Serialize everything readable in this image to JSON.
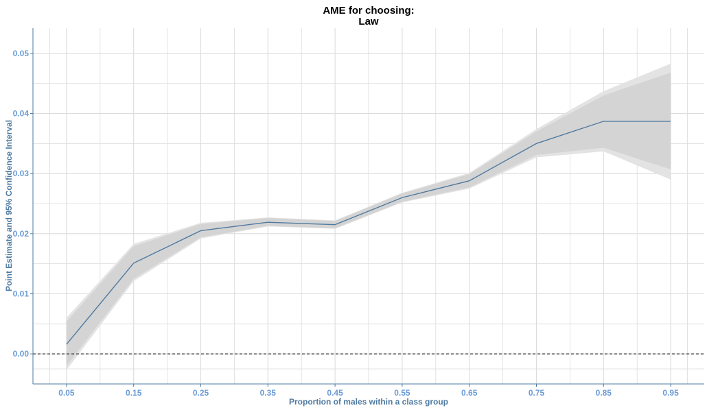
{
  "chart_data": {
    "type": "line",
    "title_lines": [
      "AME for choosing:",
      "Law"
    ],
    "xlabel": "Proportion of males within a class group",
    "ylabel": "Point Estimate and 95% Confidence Interval",
    "x": [
      0.05,
      0.15,
      0.25,
      0.35,
      0.45,
      0.55,
      0.65,
      0.75,
      0.85,
      0.95
    ],
    "x_tick_labels": [
      "0.05",
      "0.15",
      "0.25",
      "0.35",
      "0.45",
      "0.55",
      "0.65",
      "0.75",
      "0.85",
      "0.95"
    ],
    "y_tick_labels": [
      "0.00",
      "0.01",
      "0.02",
      "0.03",
      "0.04",
      "0.05"
    ],
    "y_ticks": [
      0.0,
      0.01,
      0.02,
      0.03,
      0.04,
      0.05
    ],
    "xlim": [
      0.0,
      1.0
    ],
    "ylim": [
      -0.005,
      0.0542
    ],
    "series": [
      {
        "values": [
          0.0016,
          0.0151,
          0.0205,
          0.0219,
          0.0215,
          0.026,
          0.0288,
          0.035,
          0.0387,
          0.0387
        ],
        "ci_outer_upper": [
          0.006,
          0.0183,
          0.0218,
          0.0227,
          0.0222,
          0.0268,
          0.0301,
          0.0374,
          0.0437,
          0.0483
        ],
        "ci_outer_lower": [
          -0.0027,
          0.0121,
          0.0192,
          0.0212,
          0.0208,
          0.0252,
          0.0275,
          0.0327,
          0.0337,
          0.029
        ],
        "ci_inner_upper": [
          0.0054,
          0.0179,
          0.0216,
          0.0226,
          0.0221,
          0.0267,
          0.0299,
          0.037,
          0.043,
          0.0468
        ],
        "ci_inner_lower": [
          -0.002,
          0.0125,
          0.0194,
          0.0213,
          0.0209,
          0.0253,
          0.0277,
          0.0331,
          0.0343,
          0.0307
        ]
      }
    ],
    "reference_line_y": 0.0,
    "grid": true,
    "legend": "none",
    "colors": {
      "line": "#4f7aa0",
      "ci_outer": "#e3e3e3",
      "ci_inner": "#d4d4d4",
      "grid": "#dcdcdc",
      "axis": "#4f7aa0",
      "tick_text": "#6b9bd6",
      "reference": "#000000"
    }
  }
}
